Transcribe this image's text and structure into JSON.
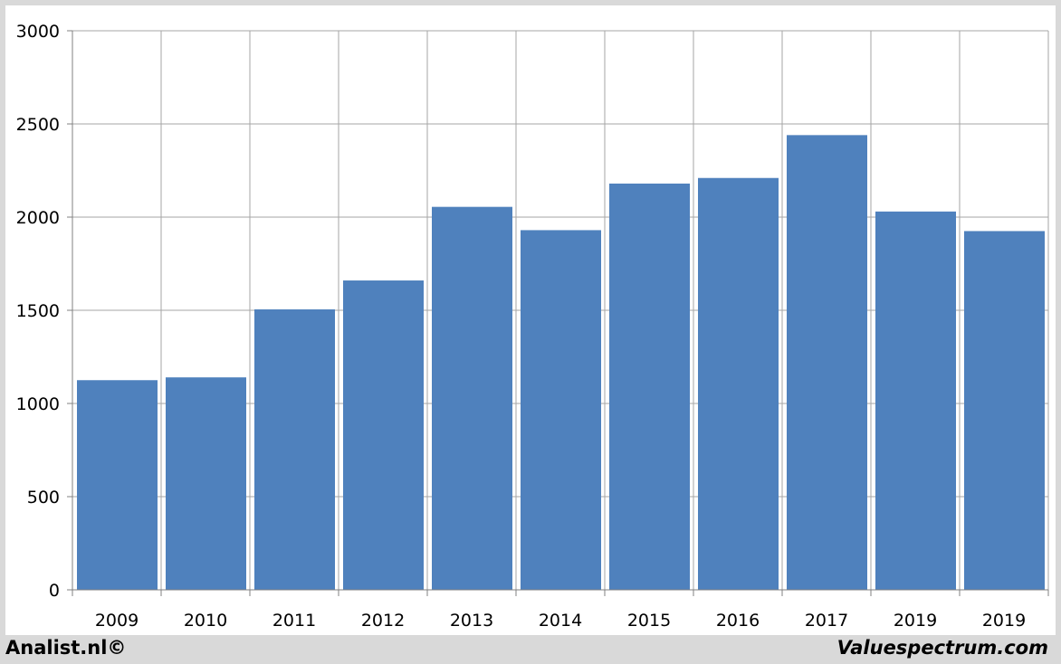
{
  "chart_data": {
    "type": "bar",
    "categories": [
      "2009",
      "2010",
      "2011",
      "2012",
      "2013",
      "2014",
      "2015",
      "2016",
      "2017",
      "2019",
      "2019"
    ],
    "values": [
      1125,
      1140,
      1505,
      1660,
      2055,
      1930,
      2180,
      2210,
      2440,
      2030,
      1925
    ],
    "ylim": [
      0,
      3000
    ],
    "yticks": [
      0,
      500,
      1000,
      1500,
      2000,
      2500,
      3000
    ],
    "grid": true,
    "bar_color": "#4f81bd",
    "grid_color": "#a6a6a6"
  },
  "footer": {
    "left": "Analist.nl©",
    "right": "Valuespectrum.com"
  }
}
